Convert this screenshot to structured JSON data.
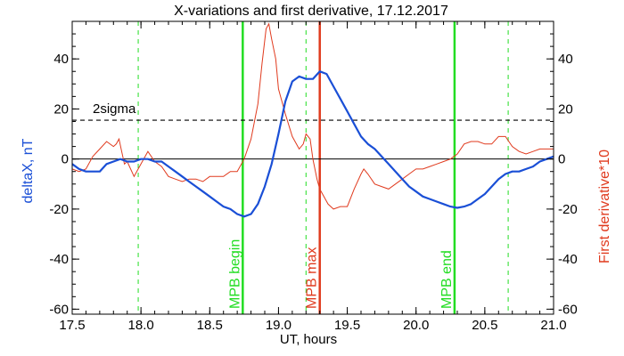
{
  "chart_data": {
    "type": "line",
    "title": "X-variations and first derivative, 17.12.2017",
    "xlabel": "UT, hours",
    "ylabel_left": "deltaX, nT",
    "ylabel_right": "First derivative*10",
    "xlim": [
      17.5,
      21.0
    ],
    "ylim": [
      -62,
      55
    ],
    "x_ticks": [
      "17.5",
      "18.0",
      "18.5",
      "19.0",
      "19.5",
      "20.0",
      "20.5",
      "21.0"
    ],
    "y_ticks": [
      "-60",
      "-40",
      "-20",
      "0",
      "20",
      "40"
    ],
    "grid": false,
    "colors": {
      "deltaX": "#1a4fd6",
      "derivative": "#e03a1e",
      "mpb": "#22dd22",
      "mpb_max": "#e03a1e",
      "axes": "#000000"
    },
    "threshold": {
      "label": "2sigma",
      "value": 15.5
    },
    "zero_line": 0,
    "markers": [
      {
        "label": "MPB begin",
        "x": 18.74,
        "color": "#22dd22",
        "style": "solid"
      },
      {
        "label": "MPB max",
        "x": 19.3,
        "color": "#e03a1e",
        "style": "solid"
      },
      {
        "label": "MPB end",
        "x": 20.28,
        "color": "#22dd22",
        "style": "solid"
      }
    ],
    "dashed_markers": [
      {
        "x": 17.98,
        "color": "#22dd22"
      },
      {
        "x": 19.2,
        "color": "#22dd22"
      },
      {
        "x": 20.67,
        "color": "#22dd22"
      }
    ],
    "series": [
      {
        "name": "deltaX, nT",
        "axis": "left",
        "x": [
          17.5,
          17.55,
          17.6,
          17.65,
          17.7,
          17.75,
          17.8,
          17.85,
          17.9,
          17.95,
          18.0,
          18.05,
          18.1,
          18.15,
          18.2,
          18.25,
          18.3,
          18.35,
          18.4,
          18.45,
          18.5,
          18.55,
          18.6,
          18.65,
          18.7,
          18.75,
          18.8,
          18.85,
          18.9,
          18.95,
          19.0,
          19.05,
          19.1,
          19.15,
          19.2,
          19.25,
          19.3,
          19.35,
          19.4,
          19.45,
          19.5,
          19.55,
          19.6,
          19.65,
          19.7,
          19.75,
          19.8,
          19.85,
          19.9,
          19.95,
          20.0,
          20.05,
          20.1,
          20.15,
          20.2,
          20.25,
          20.3,
          20.35,
          20.4,
          20.45,
          20.5,
          20.55,
          20.6,
          20.65,
          20.7,
          20.75,
          20.8,
          20.85,
          20.9,
          20.95,
          21.0
        ],
        "values": [
          -2,
          -4,
          -5,
          -5,
          -5,
          -2,
          -1,
          0,
          -1,
          -1,
          0,
          0,
          -1,
          -1,
          -3,
          -5,
          -7,
          -9,
          -11,
          -13,
          -15,
          -17,
          -19,
          -20,
          -22,
          -23,
          -22,
          -18,
          -11,
          -2,
          10,
          23,
          31,
          33,
          32,
          32,
          35,
          34,
          29,
          24,
          19,
          14,
          9,
          6,
          4,
          1,
          -2,
          -5,
          -8,
          -11,
          -13,
          -15,
          -16,
          -17,
          -18,
          -19,
          -19.5,
          -19,
          -18,
          -16,
          -14,
          -11,
          -8,
          -6,
          -5,
          -5,
          -4,
          -3,
          -1,
          0,
          1
        ]
      },
      {
        "name": "First derivative*10",
        "axis": "right",
        "x": [
          17.5,
          17.55,
          17.6,
          17.65,
          17.7,
          17.75,
          17.8,
          17.82,
          17.84,
          17.86,
          17.88,
          17.9,
          17.95,
          18.0,
          18.05,
          18.1,
          18.15,
          18.2,
          18.25,
          18.3,
          18.35,
          18.4,
          18.45,
          18.5,
          18.55,
          18.6,
          18.65,
          18.7,
          18.75,
          18.8,
          18.85,
          18.88,
          18.91,
          18.93,
          18.95,
          18.98,
          19.0,
          19.05,
          19.1,
          19.15,
          19.18,
          19.2,
          19.23,
          19.25,
          19.28,
          19.3,
          19.33,
          19.36,
          19.4,
          19.45,
          19.5,
          19.55,
          19.6,
          19.62,
          19.65,
          19.7,
          19.75,
          19.8,
          19.85,
          19.9,
          19.95,
          20.0,
          20.05,
          20.1,
          20.15,
          20.2,
          20.25,
          20.3,
          20.35,
          20.4,
          20.45,
          20.5,
          20.55,
          20.6,
          20.65,
          20.7,
          20.75,
          20.8,
          20.85,
          20.9,
          20.95,
          21.0
        ],
        "values": [
          -4,
          -5,
          -4,
          1,
          4,
          7,
          5,
          6,
          8,
          3,
          -2,
          -1,
          -7,
          -2,
          3,
          -1,
          -3,
          -7,
          -8,
          -9,
          -8,
          -8,
          -9,
          -7,
          -7,
          -7,
          -5,
          -5,
          0,
          8,
          22,
          38,
          52,
          54,
          48,
          40,
          28,
          18,
          9,
          4,
          6,
          10,
          8,
          0,
          -8,
          -12,
          -15,
          -18,
          -20,
          -19,
          -19,
          -12,
          -6,
          -4,
          -6,
          -10,
          -11,
          -12,
          -10,
          -8,
          -6,
          -4,
          -4,
          -3,
          -2,
          -1,
          0,
          2,
          6,
          7,
          7,
          6,
          6,
          9,
          9,
          5,
          3,
          2,
          3,
          4,
          4,
          4
        ]
      }
    ]
  }
}
